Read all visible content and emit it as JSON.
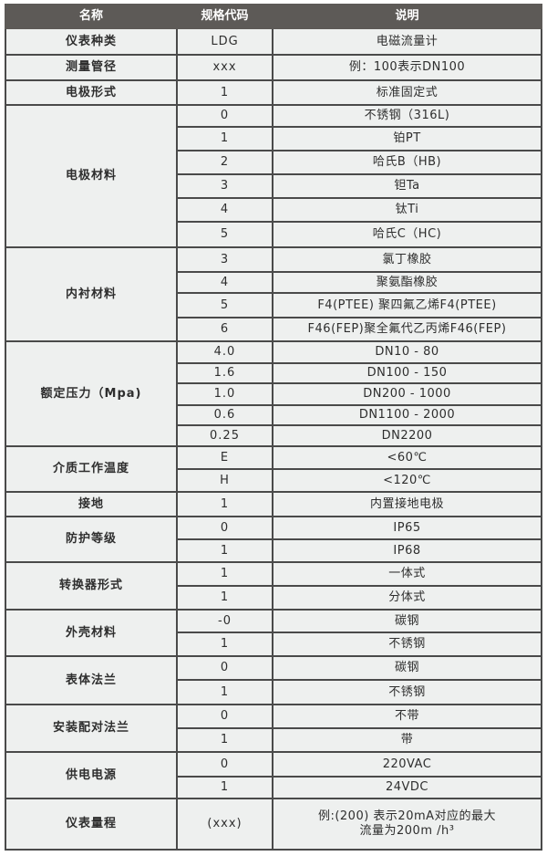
{
  "header": {
    "name": "名称",
    "code": "规格代码",
    "desc": "说明"
  },
  "colors": {
    "header_bg": "#5d5a57",
    "table_bg": "#eef0ef",
    "border": "#4a4a4a"
  },
  "rows": [
    {
      "name": "仪表种类",
      "items": [
        {
          "code": "LDG",
          "desc": "电磁流量计"
        }
      ]
    },
    {
      "name": "测量管径",
      "items": [
        {
          "code": "xxx",
          "desc": "例：100表示DN100"
        }
      ]
    },
    {
      "name": "电极形式",
      "items": [
        {
          "code": "1",
          "desc": "标准固定式"
        }
      ]
    },
    {
      "name": "电极材料",
      "items": [
        {
          "code": "0",
          "desc": "不锈钢（316L)"
        },
        {
          "code": "1",
          "desc": "铂PT"
        },
        {
          "code": "2",
          "desc": "哈氏B（HB)"
        },
        {
          "code": "3",
          "desc": "钽Ta"
        },
        {
          "code": "4",
          "desc": "钛Ti"
        },
        {
          "code": "5",
          "desc": "哈氏C（HC)"
        }
      ]
    },
    {
      "name": "内衬材料",
      "items": [
        {
          "code": "3",
          "desc": "氯丁橡胶"
        },
        {
          "code": "4",
          "desc": "聚氨酯橡胶"
        },
        {
          "code": "5",
          "desc": "F4(PTEE) 聚四氟乙烯F4(PTEE)"
        },
        {
          "code": "6",
          "desc": "F46(FEP)聚全氟代乙丙烯F46(FEP)"
        }
      ]
    },
    {
      "name": "额定压力（Mpa)",
      "items": [
        {
          "code": "4.0",
          "desc": "DN10 - 80"
        },
        {
          "code": "1.6",
          "desc": "DN100 - 150"
        },
        {
          "code": "1.0",
          "desc": "DN200 - 1000"
        },
        {
          "code": "0.6",
          "desc": "DN1100 - 2000"
        },
        {
          "code": "0.25",
          "desc": "DN2200"
        }
      ]
    },
    {
      "name": "介质工作温度",
      "items": [
        {
          "code": "E",
          "desc": "<60℃"
        },
        {
          "code": "H",
          "desc": "<120℃"
        }
      ]
    },
    {
      "name": "接地",
      "items": [
        {
          "code": "1",
          "desc": "内置接地电极"
        }
      ]
    },
    {
      "name": "防护等级",
      "items": [
        {
          "code": "0",
          "desc": "IP65"
        },
        {
          "code": "1",
          "desc": "IP68"
        }
      ]
    },
    {
      "name": "转换器形式",
      "items": [
        {
          "code": "1",
          "desc": "一体式"
        },
        {
          "code": "1",
          "desc": "分体式"
        }
      ]
    },
    {
      "name": "外壳材料",
      "items": [
        {
          "code": "-0",
          "desc": "碳钢"
        },
        {
          "code": "1",
          "desc": "不锈钢"
        }
      ]
    },
    {
      "name": "表体法兰",
      "items": [
        {
          "code": "0",
          "desc": "碳钢"
        },
        {
          "code": "1",
          "desc": "不锈钢"
        }
      ]
    },
    {
      "name": "安装配对法兰",
      "items": [
        {
          "code": "0",
          "desc": "不带"
        },
        {
          "code": "1",
          "desc": "带"
        }
      ]
    },
    {
      "name": "供电电源",
      "items": [
        {
          "code": "0",
          "desc": "220VAC"
        },
        {
          "code": "1",
          "desc": "24VDC"
        }
      ]
    },
    {
      "name": "仪表量程",
      "items": [
        {
          "code": "(xxx)",
          "desc_lines": [
            "例:(200) 表示20mA对应的最大",
            "流量为200m /h³"
          ]
        }
      ]
    }
  ]
}
